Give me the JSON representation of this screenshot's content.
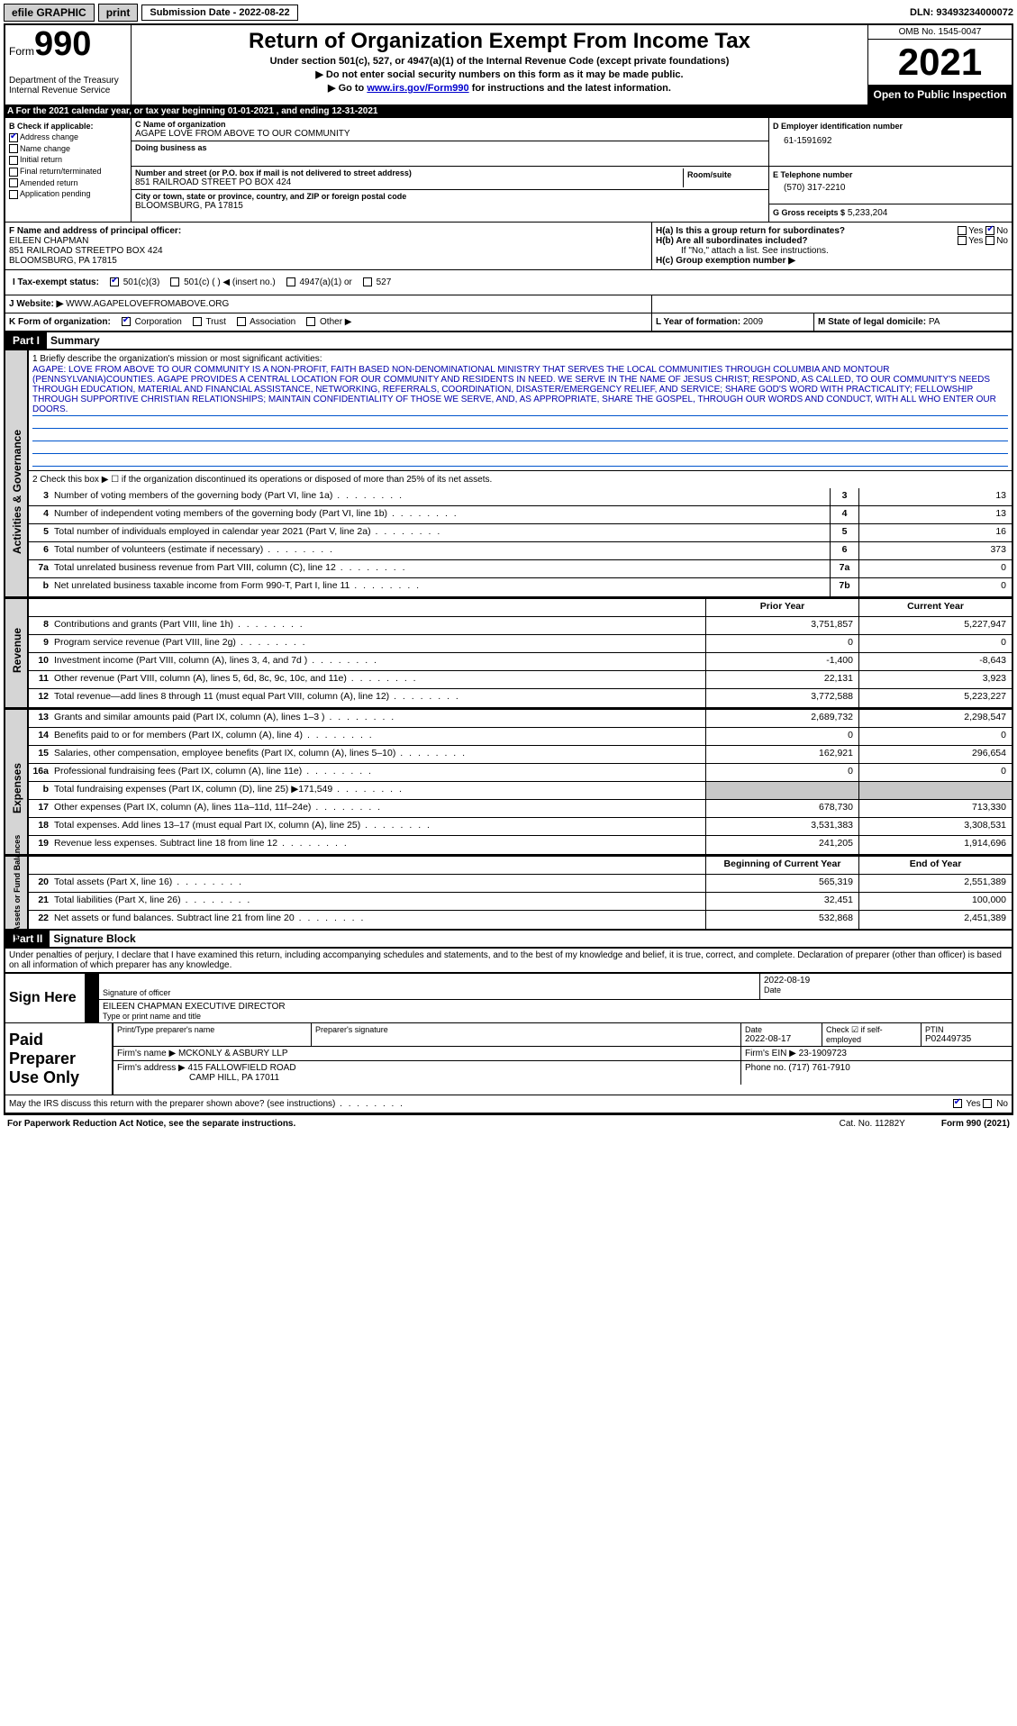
{
  "top": {
    "efile": "efile GRAPHIC",
    "print": "print",
    "subdate_lbl": "Submission Date - 2022-08-22",
    "dln": "DLN: 93493234000072"
  },
  "hdr": {
    "form_lbl": "Form",
    "form_no": "990",
    "title": "Return of Organization Exempt From Income Tax",
    "sub1": "Under section 501(c), 527, or 4947(a)(1) of the Internal Revenue Code (except private foundations)",
    "sub2": "▶ Do not enter social security numbers on this form as it may be made public.",
    "sub3_pre": "▶ Go to ",
    "sub3_link": "www.irs.gov/Form990",
    "sub3_post": " for instructions and the latest information.",
    "dept": "Department of the Treasury",
    "irs": "Internal Revenue Service",
    "omb": "OMB No. 1545-0047",
    "year": "2021",
    "open": "Open to Public Inspection"
  },
  "rowA": "A  For the 2021 calendar year, or tax year beginning 01-01-2021   , and ending 12-31-2021",
  "B": {
    "hdr": "B Check if applicable:",
    "items": [
      {
        "lbl": "Address change",
        "ck": true
      },
      {
        "lbl": "Name change",
        "ck": false
      },
      {
        "lbl": "Initial return",
        "ck": false
      },
      {
        "lbl": "Final return/terminated",
        "ck": false
      },
      {
        "lbl": "Amended return",
        "ck": false
      },
      {
        "lbl": "Application pending",
        "ck": false
      }
    ]
  },
  "C": {
    "name_lbl": "C Name of organization",
    "name": "AGAPE LOVE FROM ABOVE TO OUR COMMUNITY",
    "dba_lbl": "Doing business as",
    "dba": "",
    "addr_lbl": "Number and street (or P.O. box if mail is not delivered to street address)",
    "addr": "851 RAILROAD STREET PO BOX 424",
    "room_lbl": "Room/suite",
    "room": "",
    "city_lbl": "City or town, state or province, country, and ZIP or foreign postal code",
    "city": "BLOOMSBURG, PA  17815"
  },
  "D": {
    "lbl": "D Employer identification number",
    "val": "61-1591692"
  },
  "E": {
    "lbl": "E Telephone number",
    "val": "(570) 317-2210"
  },
  "G": {
    "lbl": "G Gross receipts $",
    "val": "5,233,204"
  },
  "F": {
    "lbl": "F  Name and address of principal officer:",
    "name": "EILEEN CHAPMAN",
    "addr1": "851 RAILROAD STREETPO BOX 424",
    "addr2": "BLOOMSBURG, PA  17815"
  },
  "H": {
    "a": "H(a)  Is this a group return for subordinates?",
    "b": "H(b)  Are all subordinates included?",
    "b_note": "If \"No,\" attach a list. See instructions.",
    "c": "H(c)  Group exemption number ▶",
    "yes": "Yes",
    "no": "No"
  },
  "I": {
    "lbl": "I   Tax-exempt status:",
    "o1": "501(c)(3)",
    "o2": "501(c) (  ) ◀ (insert no.)",
    "o3": "4947(a)(1) or",
    "o4": "527"
  },
  "J": {
    "lbl": "J   Website: ▶",
    "val": "WWW.AGAPELOVEFROMABOVE.ORG"
  },
  "K": {
    "lbl": "K Form of organization:",
    "o1": "Corporation",
    "o2": "Trust",
    "o3": "Association",
    "o4": "Other ▶"
  },
  "L": {
    "lbl": "L Year of formation:",
    "val": "2009"
  },
  "M": {
    "lbl": "M State of legal domicile:",
    "val": "PA"
  },
  "part1": {
    "hdr": "Part I",
    "title": "Summary"
  },
  "mission": {
    "lbl": "1   Briefly describe the organization's mission or most significant activities:",
    "text": "AGAPE: LOVE FROM ABOVE TO OUR COMMUNITY IS A NON-PROFIT, FAITH BASED NON-DENOMINATIONAL MINISTRY THAT SERVES THE LOCAL COMMUNITIES THROUGH COLUMBIA AND MONTOUR (PENNSYLVANIA)COUNTIES. AGAPE PROVIDES A CENTRAL LOCATION FOR OUR COMMUNITY AND RESIDENTS IN NEED. WE SERVE IN THE NAME OF JESUS CHRIST; RESPOND, AS CALLED, TO OUR COMMUNITY'S NEEDS THROUGH EDUCATION, MATERIAL AND FINANCIAL ASSISTANCE, NETWORKING, REFERRALS, COORDINATION, DISASTER/EMERGENCY RELIEF, AND SERVICE; SHARE GOD'S WORD WITH PRACTICALITY; FELLOWSHIP THROUGH SUPPORTIVE CHRISTIAN RELATIONSHIPS; MAINTAIN CONFIDENTIALITY OF THOSE WE SERVE, AND, AS APPROPRIATE, SHARE THE GOSPEL, THROUGH OUR WORDS AND CONDUCT, WITH ALL WHO ENTER OUR DOORS."
  },
  "gov": {
    "l2": "2   Check this box ▶ ☐  if the organization discontinued its operations or disposed of more than 25% of its net assets.",
    "rows": [
      {
        "n": "3",
        "d": "Number of voting members of the governing body (Part VI, line 1a)",
        "box": "3",
        "v": "13"
      },
      {
        "n": "4",
        "d": "Number of independent voting members of the governing body (Part VI, line 1b)",
        "box": "4",
        "v": "13"
      },
      {
        "n": "5",
        "d": "Total number of individuals employed in calendar year 2021 (Part V, line 2a)",
        "box": "5",
        "v": "16"
      },
      {
        "n": "6",
        "d": "Total number of volunteers (estimate if necessary)",
        "box": "6",
        "v": "373"
      },
      {
        "n": "7a",
        "d": "Total unrelated business revenue from Part VIII, column (C), line 12",
        "box": "7a",
        "v": "0"
      },
      {
        "n": "b",
        "d": "Net unrelated business taxable income from Form 990-T, Part I, line 11",
        "box": "7b",
        "v": "0"
      }
    ]
  },
  "rev": {
    "hdr_py": "Prior Year",
    "hdr_cy": "Current Year",
    "rows": [
      {
        "n": "8",
        "d": "Contributions and grants (Part VIII, line 1h)",
        "py": "3,751,857",
        "cy": "5,227,947"
      },
      {
        "n": "9",
        "d": "Program service revenue (Part VIII, line 2g)",
        "py": "0",
        "cy": "0"
      },
      {
        "n": "10",
        "d": "Investment income (Part VIII, column (A), lines 3, 4, and 7d )",
        "py": "-1,400",
        "cy": "-8,643"
      },
      {
        "n": "11",
        "d": "Other revenue (Part VIII, column (A), lines 5, 6d, 8c, 9c, 10c, and 11e)",
        "py": "22,131",
        "cy": "3,923"
      },
      {
        "n": "12",
        "d": "Total revenue—add lines 8 through 11 (must equal Part VIII, column (A), line 12)",
        "py": "3,772,588",
        "cy": "5,223,227"
      }
    ]
  },
  "exp": {
    "rows": [
      {
        "n": "13",
        "d": "Grants and similar amounts paid (Part IX, column (A), lines 1–3 )",
        "py": "2,689,732",
        "cy": "2,298,547"
      },
      {
        "n": "14",
        "d": "Benefits paid to or for members (Part IX, column (A), line 4)",
        "py": "0",
        "cy": "0"
      },
      {
        "n": "15",
        "d": "Salaries, other compensation, employee benefits (Part IX, column (A), lines 5–10)",
        "py": "162,921",
        "cy": "296,654"
      },
      {
        "n": "16a",
        "d": "Professional fundraising fees (Part IX, column (A), line 11e)",
        "py": "0",
        "cy": "0"
      },
      {
        "n": "b",
        "d": "Total fundraising expenses (Part IX, column (D), line 25) ▶171,549",
        "py": "",
        "cy": "",
        "grey": true
      },
      {
        "n": "17",
        "d": "Other expenses (Part IX, column (A), lines 11a–11d, 11f–24e)",
        "py": "678,730",
        "cy": "713,330"
      },
      {
        "n": "18",
        "d": "Total expenses. Add lines 13–17 (must equal Part IX, column (A), line 25)",
        "py": "3,531,383",
        "cy": "3,308,531"
      },
      {
        "n": "19",
        "d": "Revenue less expenses. Subtract line 18 from line 12",
        "py": "241,205",
        "cy": "1,914,696"
      }
    ]
  },
  "net": {
    "hdr_py": "Beginning of Current Year",
    "hdr_cy": "End of Year",
    "rows": [
      {
        "n": "20",
        "d": "Total assets (Part X, line 16)",
        "py": "565,319",
        "cy": "2,551,389"
      },
      {
        "n": "21",
        "d": "Total liabilities (Part X, line 26)",
        "py": "32,451",
        "cy": "100,000"
      },
      {
        "n": "22",
        "d": "Net assets or fund balances. Subtract line 21 from line 20",
        "py": "532,868",
        "cy": "2,451,389"
      }
    ]
  },
  "part2": {
    "hdr": "Part II",
    "title": "Signature Block"
  },
  "declare": "Under penalties of perjury, I declare that I have examined this return, including accompanying schedules and statements, and to the best of my knowledge and belief, it is true, correct, and complete. Declaration of preparer (other than officer) is based on all information of which preparer has any knowledge.",
  "sign": {
    "lbl": "Sign Here",
    "sig_lbl": "Signature of officer",
    "date_lbl": "Date",
    "date": "2022-08-19",
    "name": "EILEEN CHAPMAN  EXECUTIVE DIRECTOR",
    "name_lbl": "Type or print name and title"
  },
  "prep": {
    "lbl": "Paid Preparer Use Only",
    "h1": "Print/Type preparer's name",
    "h2": "Preparer's signature",
    "h3": "Date",
    "h3v": "2022-08-17",
    "h4": "Check ☑ if self-employed",
    "h5": "PTIN",
    "h5v": "P02449735",
    "firm_lbl": "Firm's name   ▶",
    "firm": "MCKONLY & ASBURY LLP",
    "ein_lbl": "Firm's EIN ▶",
    "ein": "23-1909723",
    "addr_lbl": "Firm's address ▶",
    "addr1": "415 FALLOWFIELD ROAD",
    "addr2": "CAMP HILL, PA  17011",
    "phone_lbl": "Phone no.",
    "phone": "(717) 761-7910",
    "may": "May the IRS discuss this return with the preparer shown above? (see instructions)"
  },
  "footer": {
    "l": "For Paperwork Reduction Act Notice, see the separate instructions.",
    "c": "Cat. No. 11282Y",
    "r": "Form 990 (2021)"
  },
  "vtabs": {
    "gov": "Activities & Governance",
    "rev": "Revenue",
    "exp": "Expenses",
    "net": "Net Assets or Fund Balances"
  }
}
